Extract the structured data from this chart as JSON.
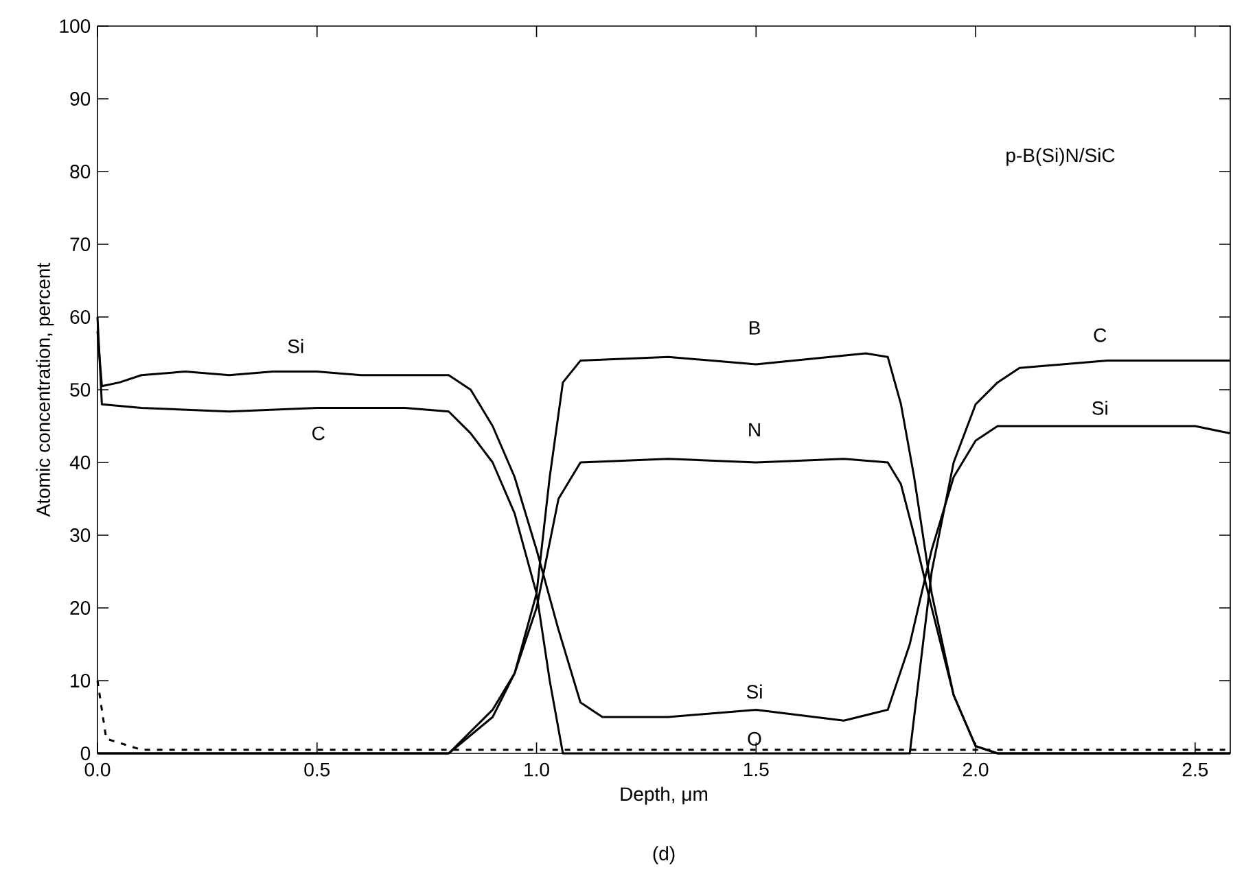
{
  "chart_data": {
    "type": "line",
    "xlabel": "Depth, μm",
    "ylabel": "Atomic concentration, percent",
    "annotations": [
      "p-B(Si)N/SiC",
      "(d)",
      "Si",
      "C",
      "B",
      "N",
      "Si",
      "O",
      "C",
      "Si"
    ],
    "xlim": [
      0,
      2.58
    ],
    "ylim": [
      0,
      100
    ],
    "xticks": [
      {
        "value": 0,
        "label": "0.0"
      },
      {
        "value": 0.5,
        "label": "0.5"
      },
      {
        "value": 1,
        "label": "1.0"
      },
      {
        "value": 1.5,
        "label": "1.5"
      },
      {
        "value": 2,
        "label": "2.0"
      },
      {
        "value": 2.5,
        "label": "2.5"
      }
    ],
    "yticks": [
      0,
      10,
      20,
      30,
      40,
      50,
      60,
      70,
      80,
      90,
      100
    ],
    "grid": false,
    "marker": "none",
    "series": [
      {
        "color": "#000000",
        "line_style": "solid",
        "x": [
          0,
          0.01,
          0.05,
          0.1,
          0.2,
          0.3,
          0.4,
          0.5,
          0.6,
          0.7,
          0.8,
          0.85,
          0.9,
          0.95,
          1.0,
          1.05,
          1.1,
          1.15,
          1.3,
          1.5,
          1.7,
          1.8,
          1.85,
          1.9,
          1.95,
          2.0,
          2.05,
          2.1,
          2.3,
          2.5,
          2.58
        ],
        "values": [
          58,
          50.5,
          51,
          52,
          52.5,
          52,
          52.5,
          52.5,
          52,
          52,
          52,
          50,
          45,
          38,
          28,
          17,
          7,
          5,
          5,
          6,
          4.5,
          6,
          15,
          28,
          38,
          43,
          45,
          45,
          45,
          45,
          44
        ]
      },
      {
        "color": "#000000",
        "line_style": "solid",
        "x": [
          0,
          0.01,
          0.1,
          0.3,
          0.5,
          0.7,
          0.8,
          0.85,
          0.9,
          0.95,
          1.0,
          1.03,
          1.06,
          1.85,
          1.87,
          1.9,
          1.95,
          2.0,
          2.05,
          2.1,
          2.3,
          2.5,
          2.58
        ],
        "values": [
          60,
          48,
          47.5,
          47,
          47.5,
          47.5,
          47,
          44,
          40,
          33,
          22,
          10,
          0,
          0,
          10,
          25,
          40,
          48,
          51,
          53,
          54,
          54,
          54
        ]
      },
      {
        "color": "#000000",
        "line_style": "solid",
        "x": [
          0,
          0.8,
          0.9,
          0.95,
          1.0,
          1.03,
          1.06,
          1.1,
          1.3,
          1.5,
          1.75,
          1.8,
          1.83,
          1.86,
          1.9,
          1.95,
          2.0,
          2.05,
          2.58
        ],
        "values": [
          0,
          0,
          5,
          11,
          22,
          38,
          51,
          54,
          54.5,
          53.5,
          55,
          54.5,
          48,
          38,
          22,
          8,
          1,
          0,
          0
        ]
      },
      {
        "color": "#000000",
        "line_style": "solid",
        "x": [
          0,
          0.8,
          0.9,
          0.95,
          1.0,
          1.05,
          1.1,
          1.3,
          1.5,
          1.7,
          1.8,
          1.83,
          1.86,
          1.9,
          1.95,
          2.0,
          2.05,
          2.58
        ],
        "values": [
          0,
          0,
          6,
          11,
          20,
          35,
          40,
          40.5,
          40,
          40.5,
          40,
          37,
          30,
          20,
          8,
          1,
          0,
          0
        ]
      },
      {
        "color": "#000000",
        "line_style": "dashed",
        "x": [
          0,
          0.02,
          0.1,
          0.5,
          1.0,
          1.5,
          2.0,
          2.58
        ],
        "values": [
          10,
          2,
          0.5,
          0.5,
          0.5,
          0.5,
          0.5,
          0.5
        ]
      }
    ]
  }
}
